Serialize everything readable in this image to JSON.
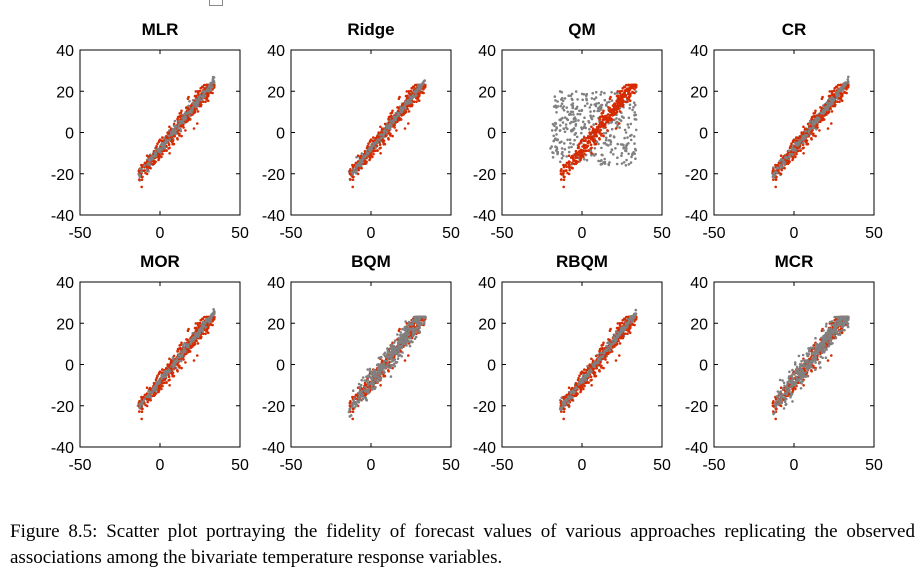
{
  "chart_data": {
    "type": "scatter",
    "layout": "2x4 grid",
    "xlim": [
      -50,
      50
    ],
    "ylim": [
      -40,
      40
    ],
    "xticks": [
      -50,
      0,
      50
    ],
    "yticks": [
      -40,
      -20,
      0,
      20,
      40
    ],
    "grid": false,
    "colors": {
      "observed": "#d62a00",
      "model": "#808080"
    },
    "panels": [
      {
        "title": "MLR",
        "model_shape": "compressed",
        "slope": 1.0,
        "model_spread": 1.6,
        "obs_on_top": true
      },
      {
        "title": "Ridge",
        "model_shape": "compressed",
        "slope": 1.0,
        "model_spread": 1.4,
        "obs_on_top": true
      },
      {
        "title": "QM",
        "model_shape": "dispersed",
        "slope": 0.0,
        "model_spread": 10.0,
        "obs_on_top": true
      },
      {
        "title": "CR",
        "model_shape": "compressed",
        "slope": 1.0,
        "model_spread": 1.6,
        "obs_on_top": true
      },
      {
        "title": "MOR",
        "model_shape": "compressed",
        "slope": 1.0,
        "model_spread": 1.3,
        "obs_on_top": true
      },
      {
        "title": "BQM",
        "model_shape": "matched",
        "slope": 1.0,
        "model_spread": 3.2,
        "obs_on_top": false
      },
      {
        "title": "RBQM",
        "model_shape": "compressed",
        "slope": 1.0,
        "model_spread": 1.5,
        "obs_on_top": true
      },
      {
        "title": "MCR",
        "model_shape": "matched",
        "slope": 1.0,
        "model_spread": 3.2,
        "obs_on_top": false
      }
    ]
  },
  "caption": {
    "text": "Figure 8.5: Scatter plot portraying the fidelity of forecast values of various approaches replicating the observed associations among the bivariate temperature response variables."
  }
}
